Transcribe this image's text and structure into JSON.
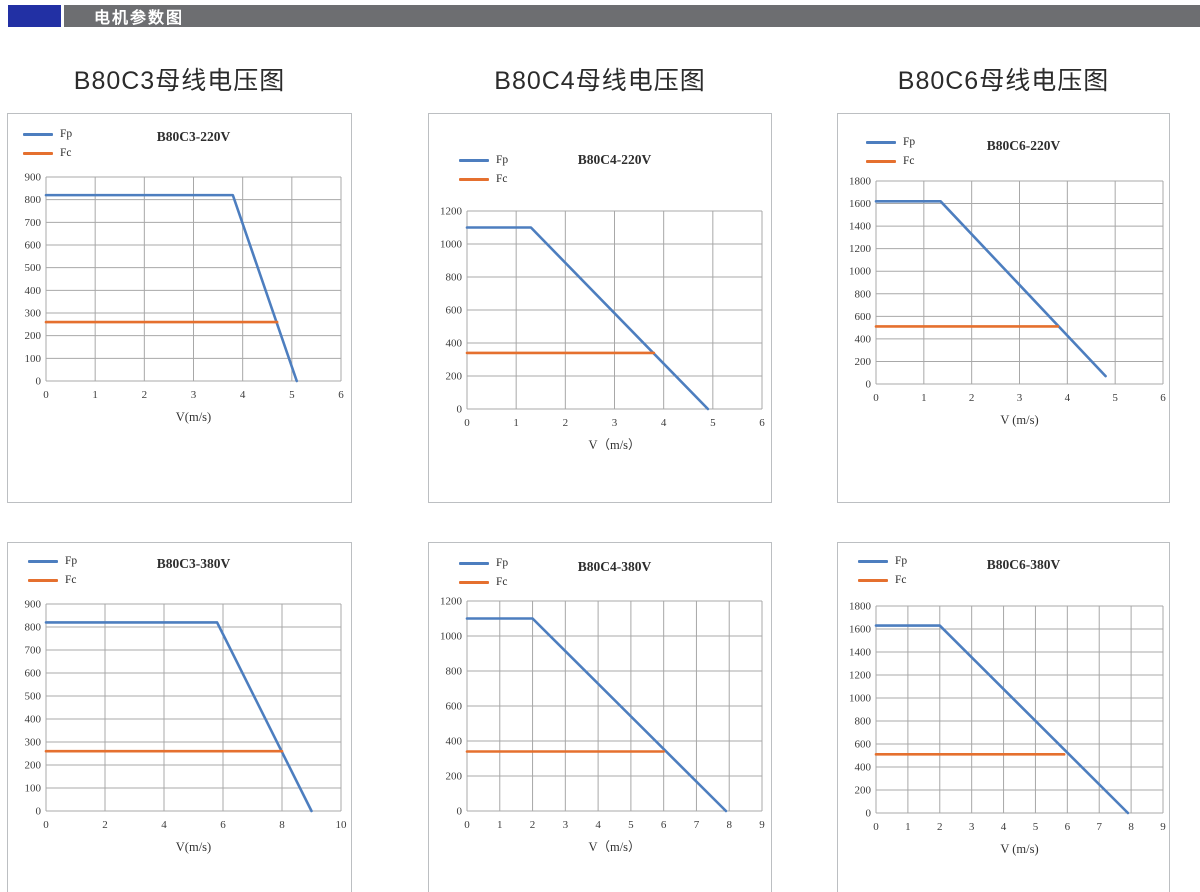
{
  "header": {
    "title": "电机参数图"
  },
  "section_titles": [
    "B80C3母线电压图",
    "B80C4母线电压图",
    "B80C6母线电压图"
  ],
  "colors": {
    "fp": "#4d7ebf",
    "fc": "#e5702f",
    "grid": "#a8a8a8",
    "header_bar": "#6d6e71",
    "header_accent": "#2230a4"
  },
  "chart_data": [
    {
      "type": "line",
      "title": "B80C3-220V",
      "xlabel": "V(m/s)",
      "legend": [
        "Fp",
        "Fc"
      ],
      "legend_position": "top-left",
      "grid": true,
      "x_min": 0,
      "x_max": 6,
      "x_step": 1,
      "y_min": 0,
      "y_max": 900,
      "y_step": 100,
      "series": [
        {
          "name": "Fp",
          "color_key": "fp",
          "points": [
            [
              0,
              820
            ],
            [
              3.8,
              820
            ],
            [
              5.1,
              0
            ]
          ]
        },
        {
          "name": "Fc",
          "color_key": "fc",
          "points": [
            [
              0,
              260
            ],
            [
              4.7,
              260
            ]
          ]
        }
      ]
    },
    {
      "type": "line",
      "title": "B80C4-220V",
      "xlabel": "V（m/s）",
      "legend": [
        "Fp",
        "Fc"
      ],
      "legend_position": "top-left",
      "grid": true,
      "x_min": 0,
      "x_max": 6,
      "x_step": 1,
      "y_min": 0,
      "y_max": 1200,
      "y_step": 200,
      "series": [
        {
          "name": "Fp",
          "color_key": "fp",
          "points": [
            [
              0,
              1100
            ],
            [
              1.3,
              1100
            ],
            [
              4.9,
              0
            ]
          ]
        },
        {
          "name": "Fc",
          "color_key": "fc",
          "points": [
            [
              0,
              340
            ],
            [
              3.8,
              340
            ]
          ]
        }
      ]
    },
    {
      "type": "line",
      "title": "B80C6-220V",
      "xlabel": "V (m/s)",
      "legend": [
        "Fp",
        "Fc"
      ],
      "legend_position": "top-left",
      "grid": true,
      "x_min": 0,
      "x_max": 6,
      "x_step": 1,
      "y_min": 0,
      "y_max": 1800,
      "y_step": 200,
      "series": [
        {
          "name": "Fp",
          "color_key": "fp",
          "points": [
            [
              0,
              1620
            ],
            [
              1.35,
              1620
            ],
            [
              4.8,
              70
            ]
          ]
        },
        {
          "name": "Fc",
          "color_key": "fc",
          "points": [
            [
              0,
              510
            ],
            [
              3.8,
              510
            ]
          ]
        }
      ]
    },
    {
      "type": "line",
      "title": "B80C3-380V",
      "xlabel": "V(m/s)",
      "legend": [
        "Fp",
        "Fc"
      ],
      "legend_position": "top-left",
      "grid": true,
      "x_min": 0,
      "x_max": 10,
      "x_step": 2,
      "y_min": 0,
      "y_max": 900,
      "y_step": 100,
      "series": [
        {
          "name": "Fp",
          "color_key": "fp",
          "points": [
            [
              0,
              820
            ],
            [
              5.8,
              820
            ],
            [
              9,
              0
            ]
          ]
        },
        {
          "name": "Fc",
          "color_key": "fc",
          "points": [
            [
              0,
              260
            ],
            [
              8,
              260
            ]
          ]
        }
      ]
    },
    {
      "type": "line",
      "title": "B80C4-380V",
      "xlabel": "V（m/s）",
      "legend": [
        "Fp",
        "Fc"
      ],
      "legend_position": "top-left",
      "grid": true,
      "x_min": 0,
      "x_max": 9,
      "x_step": 1,
      "y_min": 0,
      "y_max": 1200,
      "y_step": 200,
      "series": [
        {
          "name": "Fp",
          "color_key": "fp",
          "points": [
            [
              0,
              1100
            ],
            [
              2,
              1100
            ],
            [
              7.9,
              0
            ]
          ]
        },
        {
          "name": "Fc",
          "color_key": "fc",
          "points": [
            [
              0,
              340
            ],
            [
              6,
              340
            ]
          ]
        }
      ]
    },
    {
      "type": "line",
      "title": "B80C6-380V",
      "xlabel": "V (m/s)",
      "legend": [
        "Fp",
        "Fc"
      ],
      "legend_position": "top-left",
      "grid": true,
      "x_min": 0,
      "x_max": 9,
      "x_step": 1,
      "y_min": 0,
      "y_max": 1800,
      "y_step": 200,
      "series": [
        {
          "name": "Fp",
          "color_key": "fp",
          "points": [
            [
              0,
              1630
            ],
            [
              2,
              1630
            ],
            [
              7.9,
              0
            ]
          ]
        },
        {
          "name": "Fc",
          "color_key": "fc",
          "points": [
            [
              0,
              510
            ],
            [
              5.9,
              510
            ]
          ]
        }
      ]
    }
  ]
}
